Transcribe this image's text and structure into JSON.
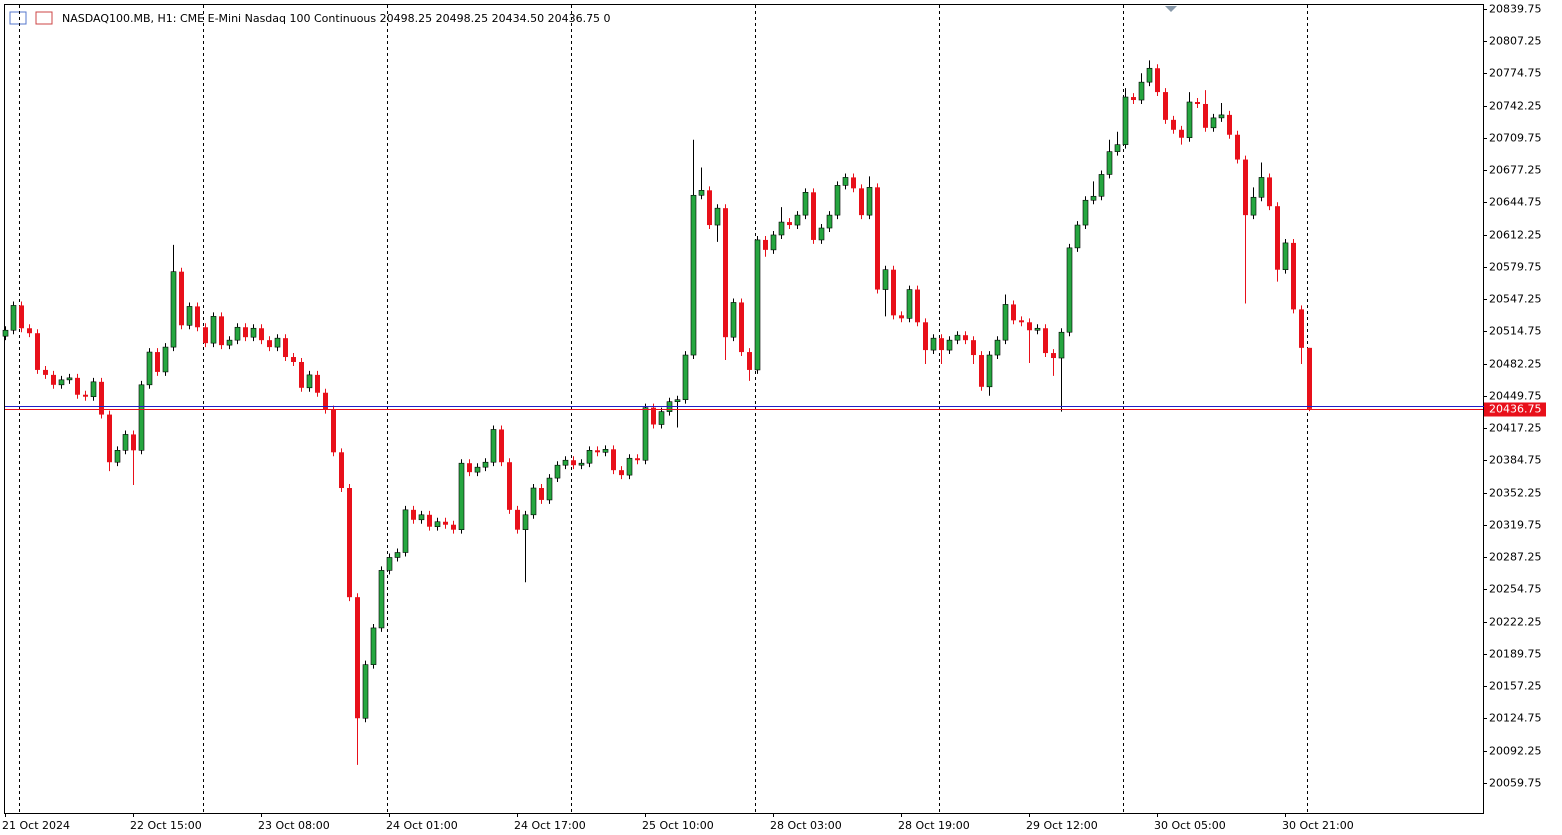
{
  "chart_data": {
    "type": "candlestick",
    "title": "NASDAQ100.MB, H1:  CME E-Mini Nasdaq 100 Continuous  20498.25 20498.25 20434.50 20436.75  0",
    "up_color": "#26a640",
    "down_color": "#e8101a",
    "bid_color": "#e8101a",
    "ask_color": "#1e1ec8",
    "ask": 20439.75,
    "ylim": [
      20029.5,
      20843.75
    ],
    "yticks": [
      20839.75,
      20807.25,
      20774.75,
      20742.25,
      20709.75,
      20677.25,
      20644.75,
      20612.25,
      20579.75,
      20547.25,
      20514.75,
      20482.25,
      20449.75,
      20417.25,
      20384.75,
      20352.25,
      20319.75,
      20287.25,
      20254.75,
      20222.25,
      20189.75,
      20157.25,
      20124.75,
      20092.25,
      20059.75
    ],
    "xticks": [
      {
        "value": 0,
        "label": "21 Oct 2024"
      },
      {
        "value": 16,
        "label": "22 Oct 15:00"
      },
      {
        "value": 32,
        "label": "23 Oct 08:00"
      },
      {
        "value": 48,
        "label": "24 Oct 01:00"
      },
      {
        "value": 64,
        "label": "24 Oct 17:00"
      },
      {
        "value": 80,
        "label": "25 Oct 10:00"
      },
      {
        "value": 96,
        "label": "28 Oct 03:00"
      },
      {
        "value": 112,
        "label": "28 Oct 19:00"
      },
      {
        "value": 128,
        "label": "29 Oct 12:00"
      },
      {
        "value": 144,
        "label": "30 Oct 05:00"
      },
      {
        "value": 160,
        "label": "30 Oct 21:00"
      }
    ],
    "open": [
      20510,
      20516,
      20541,
      20518,
      20513,
      20476,
      20471,
      20461,
      20466,
      20468,
      20451,
      20449,
      20464,
      20431,
      20383,
      20395,
      20411,
      20395,
      20461,
      20494,
      20474,
      20499,
      20575,
      20521,
      20540,
      20519,
      20503,
      20530,
      20501,
      20506,
      20519,
      20509,
      20518,
      20506,
      20499,
      20508,
      20489,
      20484,
      20458,
      20471,
      20453,
      20436,
      20393,
      20357,
      20247,
      20125,
      20179,
      20216,
      20274,
      20287,
      20292,
      20335,
      20325,
      20330,
      20318,
      20323,
      20320,
      20315,
      20382,
      20373,
      20378,
      20383,
      20416,
      20383,
      20335,
      20315,
      20330,
      20357,
      20345,
      20367,
      20380,
      20385,
      20380,
      20382,
      20395,
      20393,
      20396,
      20375,
      20370,
      20387,
      20385,
      20438,
      20421,
      20434,
      20444,
      20446,
      20491,
      20652,
      20657,
      20622,
      20639,
      20509,
      20544,
      20494,
      20476,
      20607,
      20597,
      20612,
      20625,
      20622,
      20632,
      20655,
      20607,
      20619,
      20632,
      20662,
      20670,
      20659,
      20632,
      20660,
      20557,
      20577,
      20531,
      20528,
      20557,
      20524,
      20496,
      20508,
      20496,
      20506,
      20511,
      20506,
      20491,
      20459,
      20491,
      20506,
      20542,
      20526,
      20524,
      20516,
      20518,
      20493,
      20488,
      20514,
      20599,
      20622,
      20647,
      20651,
      20673,
      20696,
      20703,
      20751,
      20748,
      20766,
      20780,
      20756,
      20728,
      20718,
      20710,
      20746,
      20744,
      20720,
      20730,
      20733,
      20713,
      20688,
      20632,
      20650,
      20670,
      20641,
      20577,
      20604,
      20537,
      20498.25
    ],
    "high": [
      20520,
      20545,
      20545,
      20522,
      20517,
      20480,
      20475,
      20470,
      20472,
      20472,
      20455,
      20468,
      20468,
      20435,
      20399,
      20415,
      20415,
      20465,
      20498,
      20498,
      20503,
      20602,
      20579,
      20544,
      20544,
      20523,
      20534,
      20534,
      20510,
      20523,
      20523,
      20522,
      20522,
      20510,
      20512,
      20512,
      20493,
      20488,
      20475,
      20475,
      20457,
      20440,
      20397,
      20361,
      20251,
      20183,
      20220,
      20278,
      20291,
      20296,
      20339,
      20339,
      20334,
      20334,
      20327,
      20327,
      20324,
      20386,
      20386,
      20382,
      20387,
      20420,
      20420,
      20387,
      20339,
      20334,
      20361,
      20361,
      20371,
      20384,
      20389,
      20389,
      20386,
      20399,
      20399,
      20400,
      20400,
      20379,
      20391,
      20391,
      20442,
      20442,
      20438,
      20448,
      20450,
      20495,
      20708,
      20680,
      20661,
      20643,
      20643,
      20548,
      20548,
      20498,
      20611,
      20611,
      20616,
      20640,
      20629,
      20636,
      20659,
      20659,
      20623,
      20636,
      20666,
      20674,
      20674,
      20663,
      20671,
      20664,
      20581,
      20581,
      20535,
      20561,
      20561,
      20528,
      20512,
      20512,
      20510,
      20515,
      20515,
      20510,
      20495,
      20495,
      20510,
      20552,
      20546,
      20530,
      20528,
      20522,
      20522,
      20497,
      20518,
      20603,
      20626,
      20651,
      20666,
      20677,
      20708,
      20716,
      20760,
      20755,
      20775,
      20788,
      20784,
      20760,
      20732,
      20722,
      20756,
      20750,
      20758,
      20734,
      20745,
      20737,
      20717,
      20692,
      20660,
      20685,
      20674,
      20645,
      20608,
      20608,
      20541,
      20498.25
    ],
    "low": [
      20506,
      20512,
      20514,
      20509,
      20472,
      20467,
      20457,
      20457,
      20462,
      20447,
      20445,
      20445,
      20427,
      20374,
      20379,
      20391,
      20360,
      20391,
      20457,
      20470,
      20470,
      20495,
      20517,
      20517,
      20515,
      20499,
      20499,
      20497,
      20497,
      20502,
      20505,
      20505,
      20502,
      20495,
      20495,
      20485,
      20480,
      20454,
      20454,
      20449,
      20432,
      20389,
      20353,
      20243,
      20078,
      20121,
      20175,
      20212,
      20270,
      20283,
      20288,
      20321,
      20321,
      20314,
      20314,
      20316,
      20311,
      20311,
      20369,
      20369,
      20374,
      20379,
      20379,
      20331,
      20311,
      20262,
      20326,
      20341,
      20341,
      20363,
      20376,
      20376,
      20376,
      20378,
      20389,
      20389,
      20371,
      20366,
      20366,
      20381,
      20381,
      20417,
      20417,
      20430,
      20418,
      20442,
      20487,
      20648,
      20618,
      20605,
      20486,
      20505,
      20490,
      20465,
      20472,
      20590,
      20593,
      20608,
      20618,
      20618,
      20628,
      20603,
      20603,
      20615,
      20628,
      20658,
      20655,
      20628,
      20628,
      20553,
      20530,
      20527,
      20524,
      20524,
      20520,
      20482,
      20492,
      20482,
      20492,
      20502,
      20502,
      20482,
      20455,
      20450,
      20487,
      20502,
      20522,
      20520,
      20483,
      20512,
      20489,
      20470,
      20434,
      20510,
      20595,
      20618,
      20643,
      20647,
      20669,
      20692,
      20699,
      20744,
      20744,
      20762,
      20752,
      20724,
      20714,
      20703,
      20706,
      20740,
      20716,
      20716,
      20726,
      20709,
      20684,
      20543,
      20628,
      20646,
      20637,
      20565,
      20573,
      20533,
      20482,
      20434.5
    ],
    "close": [
      20516,
      20541,
      20518,
      20513,
      20476,
      20471,
      20461,
      20466,
      20468,
      20451,
      20449,
      20464,
      20431,
      20383,
      20395,
      20411,
      20395,
      20461,
      20494,
      20474,
      20499,
      20575,
      20521,
      20540,
      20519,
      20503,
      20530,
      20501,
      20506,
      20519,
      20509,
      20518,
      20506,
      20499,
      20508,
      20489,
      20484,
      20458,
      20471,
      20453,
      20436,
      20393,
      20357,
      20247,
      20125,
      20179,
      20216,
      20274,
      20287,
      20292,
      20335,
      20325,
      20330,
      20318,
      20323,
      20320,
      20315,
      20382,
      20373,
      20378,
      20383,
      20416,
      20383,
      20335,
      20315,
      20330,
      20357,
      20345,
      20367,
      20380,
      20385,
      20380,
      20382,
      20395,
      20393,
      20396,
      20375,
      20370,
      20387,
      20385,
      20438,
      20421,
      20434,
      20444,
      20446,
      20491,
      20652,
      20657,
      20622,
      20639,
      20509,
      20544,
      20494,
      20476,
      20607,
      20597,
      20612,
      20625,
      20622,
      20632,
      20655,
      20607,
      20619,
      20632,
      20662,
      20670,
      20659,
      20632,
      20660,
      20557,
      20577,
      20531,
      20528,
      20557,
      20524,
      20496,
      20508,
      20496,
      20506,
      20511,
      20506,
      20491,
      20459,
      20491,
      20506,
      20542,
      20526,
      20524,
      20516,
      20518,
      20493,
      20488,
      20514,
      20599,
      20622,
      20647,
      20651,
      20673,
      20696,
      20703,
      20751,
      20748,
      20766,
      20780,
      20756,
      20728,
      20718,
      20710,
      20746,
      20744,
      20720,
      20730,
      20733,
      20713,
      20688,
      20632,
      20650,
      20670,
      20641,
      20577,
      20604,
      20537,
      20498.25,
      20436.75
    ]
  }
}
